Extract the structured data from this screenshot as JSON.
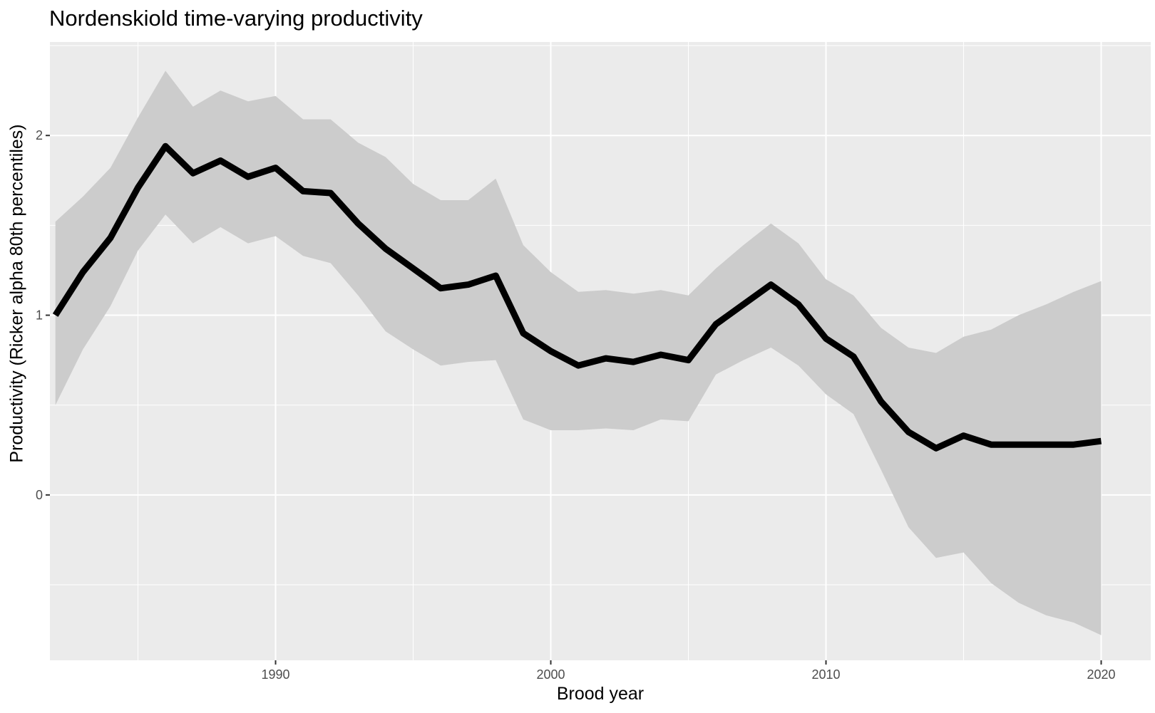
{
  "chart_data": {
    "type": "line",
    "title": "Nordenskiold time-varying productivity",
    "xlabel": "Brood year",
    "ylabel": "Productivity (Ricker alpha 80th percentiles)",
    "xlim": [
      1981.8,
      2021.8
    ],
    "ylim": [
      -0.92,
      2.52
    ],
    "x_ticks": [
      1990,
      2000,
      2010,
      2020
    ],
    "y_ticks": [
      0,
      1,
      2
    ],
    "grid": true,
    "legend": "none",
    "series": [
      {
        "x": [
          1982,
          1983,
          1984,
          1985,
          1986,
          1987,
          1988,
          1989,
          1990,
          1991,
          1992,
          1993,
          1994,
          1995,
          1996,
          1997,
          1998,
          1999,
          2000,
          2001,
          2002,
          2003,
          2004,
          2005,
          2006,
          2007,
          2008,
          2009,
          2010,
          2011,
          2012,
          2013,
          2014,
          2015,
          2016,
          2017,
          2018,
          2019,
          2020
        ],
        "median": [
          1.0,
          1.24,
          1.43,
          1.71,
          1.94,
          1.79,
          1.86,
          1.77,
          1.82,
          1.69,
          1.68,
          1.51,
          1.37,
          1.26,
          1.15,
          1.17,
          1.22,
          0.9,
          0.8,
          0.72,
          0.76,
          0.74,
          0.78,
          0.75,
          0.95,
          1.06,
          1.17,
          1.06,
          0.87,
          0.77,
          0.52,
          0.35,
          0.26,
          0.33,
          0.28,
          0.28,
          0.28,
          0.28,
          0.3
        ],
        "upper": [
          1.52,
          1.66,
          1.82,
          2.1,
          2.36,
          2.16,
          2.25,
          2.19,
          2.22,
          2.09,
          2.09,
          1.96,
          1.88,
          1.73,
          1.64,
          1.64,
          1.76,
          1.39,
          1.24,
          1.13,
          1.14,
          1.12,
          1.14,
          1.11,
          1.26,
          1.39,
          1.51,
          1.4,
          1.2,
          1.11,
          0.93,
          0.82,
          0.79,
          0.88,
          0.92,
          1.0,
          1.06,
          1.13,
          1.19
        ],
        "lower": [
          0.5,
          0.81,
          1.05,
          1.36,
          1.56,
          1.4,
          1.49,
          1.4,
          1.44,
          1.33,
          1.29,
          1.11,
          0.91,
          0.81,
          0.72,
          0.74,
          0.75,
          0.42,
          0.36,
          0.36,
          0.37,
          0.36,
          0.42,
          0.41,
          0.67,
          0.75,
          0.82,
          0.72,
          0.56,
          0.45,
          0.14,
          -0.18,
          -0.35,
          -0.32,
          -0.49,
          -0.6,
          -0.67,
          -0.71,
          -0.78
        ]
      }
    ],
    "colors": {
      "panel_background": "#ebebeb",
      "grid_line": "#ffffff",
      "ribbon": "#cccccc",
      "line": "#000000",
      "tick_label": "#4d4d4d"
    }
  }
}
